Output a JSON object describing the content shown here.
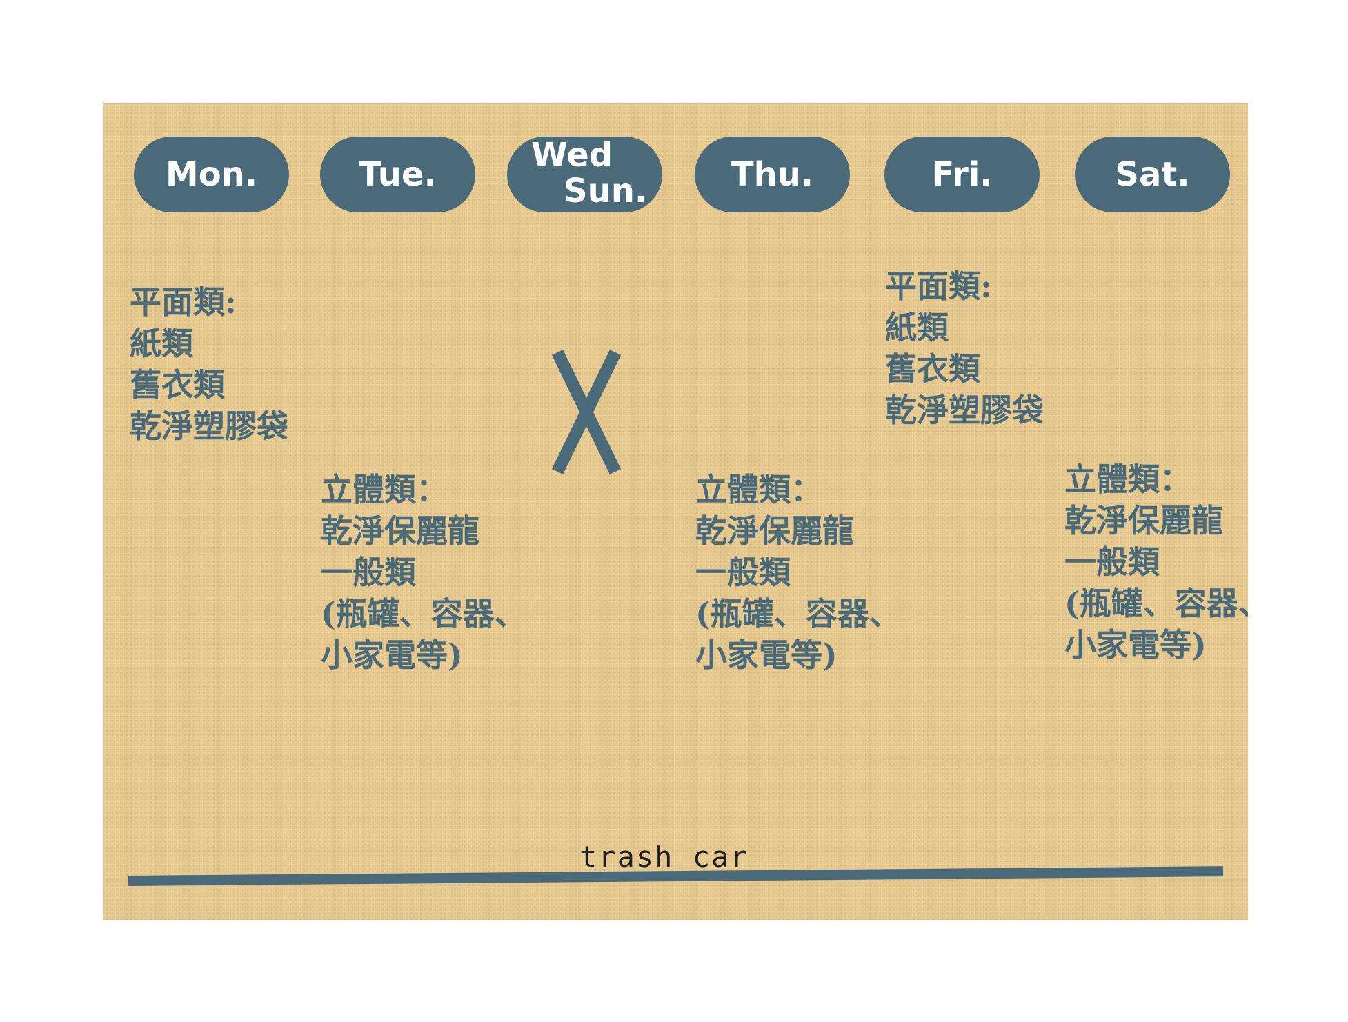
{
  "days": {
    "mon": "Mon.",
    "tue": "Tue.",
    "wed": "Wed",
    "sun": "Sun.",
    "thu": "Thu.",
    "fri": "Fri.",
    "sat": "Sat."
  },
  "flat_category": {
    "title": "平面類:",
    "items": [
      "紙類",
      "舊衣類",
      "乾淨塑膠袋"
    ]
  },
  "solid_category": {
    "title": "立體類：",
    "items": [
      "乾淨保麗龍",
      "一般類",
      "(瓶罐、容器、",
      "小家電等)"
    ]
  },
  "no_collection_mark": "X",
  "footer": {
    "label": "trash car"
  },
  "colors": {
    "accent": "#4a6a7a",
    "background": "#e3c487",
    "label_text": "#1e1e1e"
  },
  "icons": {
    "no_collection": "x-mark-icon"
  }
}
